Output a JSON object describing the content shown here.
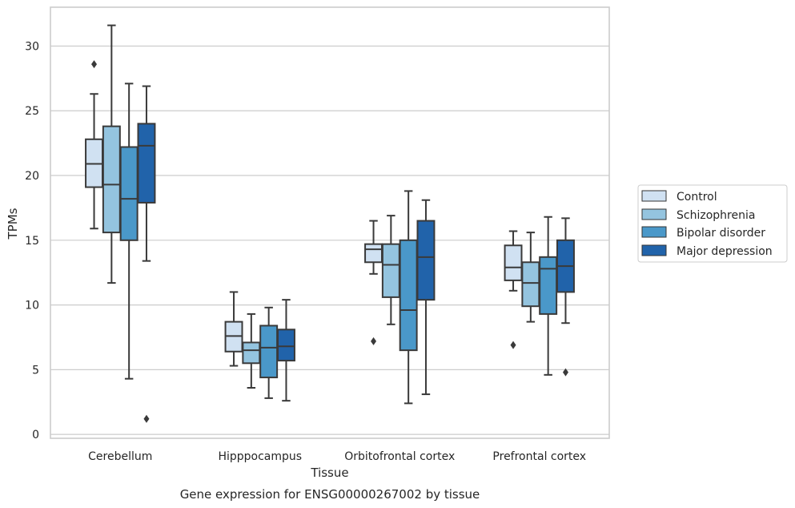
{
  "chart_data": {
    "type": "boxplot",
    "xlabel": "Tissue",
    "ylabel": "TPMs",
    "caption": "Gene expression for ENSG00000267002 by tissue",
    "ylim": [
      -0.3,
      33
    ],
    "yticks": [
      0,
      5,
      10,
      15,
      20,
      25,
      30
    ],
    "grid": "horizontal",
    "legend_placement": "right",
    "categories": [
      "Cerebellum",
      "Hipppocampus",
      "Orbitofrontal cortex",
      "Prefrontal cortex"
    ],
    "series": [
      {
        "name": "Control",
        "color": "#d0e1f2",
        "boxes": [
          {
            "whisker_low": 15.9,
            "q1": 19.1,
            "median": 20.9,
            "q3": 22.8,
            "whisker_high": 26.3,
            "outliers": [
              28.6
            ]
          },
          {
            "whisker_low": 5.3,
            "q1": 6.4,
            "median": 7.6,
            "q3": 8.7,
            "whisker_high": 11.0,
            "outliers": []
          },
          {
            "whisker_low": 12.4,
            "q1": 13.3,
            "median": 14.3,
            "q3": 14.7,
            "whisker_high": 16.5,
            "outliers": [
              7.2
            ]
          },
          {
            "whisker_low": 11.1,
            "q1": 11.9,
            "median": 12.9,
            "q3": 14.6,
            "whisker_high": 15.7,
            "outliers": [
              6.9
            ]
          }
        ]
      },
      {
        "name": "Schizophrenia",
        "color": "#94c4df",
        "boxes": [
          {
            "whisker_low": 11.7,
            "q1": 15.6,
            "median": 19.3,
            "q3": 23.8,
            "whisker_high": 31.6,
            "outliers": []
          },
          {
            "whisker_low": 3.6,
            "q1": 5.5,
            "median": 6.5,
            "q3": 7.1,
            "whisker_high": 9.3,
            "outliers": []
          },
          {
            "whisker_low": 8.5,
            "q1": 10.6,
            "median": 13.1,
            "q3": 14.7,
            "whisker_high": 16.9,
            "outliers": []
          },
          {
            "whisker_low": 8.7,
            "q1": 9.9,
            "median": 11.7,
            "q3": 13.3,
            "whisker_high": 15.6,
            "outliers": []
          }
        ]
      },
      {
        "name": "Bipolar disorder",
        "color": "#4a98c9",
        "boxes": [
          {
            "whisker_low": 4.3,
            "q1": 15.0,
            "median": 18.2,
            "q3": 22.2,
            "whisker_high": 27.1,
            "outliers": []
          },
          {
            "whisker_low": 2.8,
            "q1": 4.4,
            "median": 6.7,
            "q3": 8.4,
            "whisker_high": 9.8,
            "outliers": []
          },
          {
            "whisker_low": 2.4,
            "q1": 6.5,
            "median": 9.6,
            "q3": 15.0,
            "whisker_high": 18.8,
            "outliers": []
          },
          {
            "whisker_low": 4.6,
            "q1": 9.3,
            "median": 12.8,
            "q3": 13.7,
            "whisker_high": 16.8,
            "outliers": []
          }
        ]
      },
      {
        "name": "Major depression",
        "color": "#2163aa",
        "boxes": [
          {
            "whisker_low": 13.4,
            "q1": 17.9,
            "median": 22.3,
            "q3": 24.0,
            "whisker_high": 26.9,
            "outliers": [
              1.2
            ]
          },
          {
            "whisker_low": 2.6,
            "q1": 5.7,
            "median": 6.8,
            "q3": 8.1,
            "whisker_high": 10.4,
            "outliers": []
          },
          {
            "whisker_low": 3.1,
            "q1": 10.4,
            "median": 13.7,
            "q3": 16.5,
            "whisker_high": 18.1,
            "outliers": []
          },
          {
            "whisker_low": 8.6,
            "q1": 11.0,
            "median": 13.0,
            "q3": 15.0,
            "whisker_high": 16.7,
            "outliers": [
              4.8
            ]
          }
        ]
      }
    ]
  }
}
